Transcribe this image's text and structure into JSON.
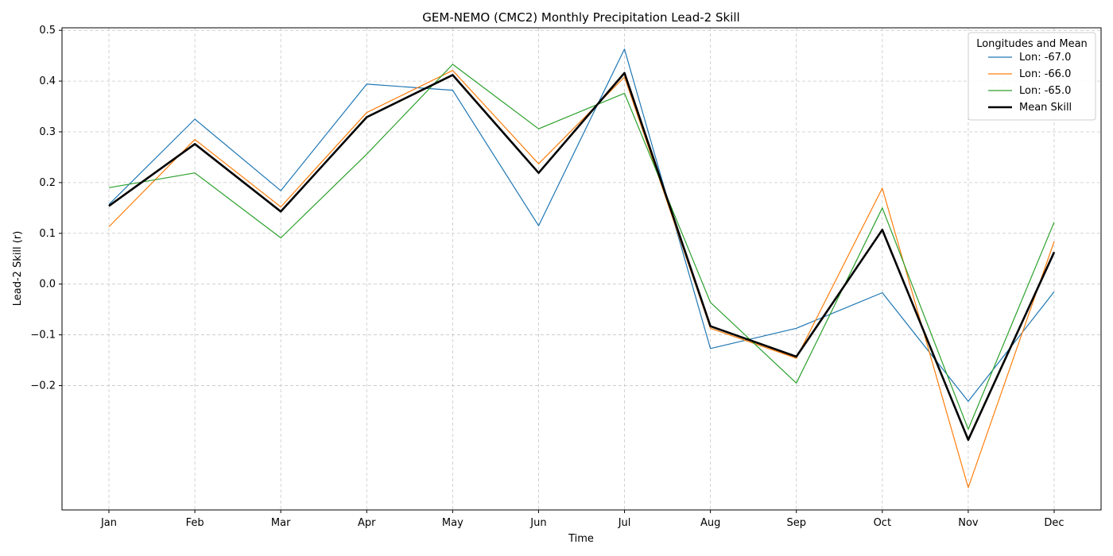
{
  "chart_data": {
    "type": "line",
    "title": "GEM-NEMO (CMC2) Monthly Precipitation Lead-2 Skill",
    "xlabel": "Time",
    "ylabel": "Lead-2 Skill (r)",
    "categories": [
      "Jan",
      "Feb",
      "Mar",
      "Apr",
      "May",
      "Jun",
      "Jul",
      "Aug",
      "Sep",
      "Oct",
      "Nov",
      "Dec"
    ],
    "yticks": [
      0.5,
      0.4,
      0.3,
      0.2,
      0.1,
      0.0,
      -0.1,
      -0.2
    ],
    "ytick_labels": [
      "0.5",
      "0.4",
      "0.3",
      "0.2",
      "0.1",
      "0.0",
      "−0.1",
      "−0.2"
    ],
    "ylim": [
      -0.445,
      0.505
    ],
    "grid": true,
    "legend": {
      "title": "Longitudes and Mean",
      "placement": "top-right"
    },
    "series": [
      {
        "name": "Lon: -67.0",
        "color": "#1f77b4",
        "width": "thin",
        "values": [
          0.157,
          0.325,
          0.184,
          0.394,
          0.382,
          0.115,
          0.463,
          -0.127,
          -0.087,
          -0.017,
          -0.231,
          -0.015
        ]
      },
      {
        "name": "Lon: -66.0",
        "color": "#ff7f0e",
        "width": "thin",
        "values": [
          0.113,
          0.285,
          0.152,
          0.338,
          0.421,
          0.237,
          0.408,
          -0.087,
          -0.146,
          0.189,
          -0.401,
          0.084
        ]
      },
      {
        "name": "Lon: -65.0",
        "color": "#2ca02c",
        "width": "thin",
        "values": [
          0.19,
          0.219,
          0.091,
          0.256,
          0.433,
          0.306,
          0.376,
          -0.036,
          -0.195,
          0.15,
          -0.286,
          0.122
        ]
      },
      {
        "name": "Mean Skill",
        "color": "#000000",
        "width": "thick",
        "values": [
          0.154,
          0.276,
          0.143,
          0.329,
          0.412,
          0.219,
          0.416,
          -0.083,
          -0.143,
          0.107,
          -0.307,
          0.063
        ]
      }
    ]
  }
}
